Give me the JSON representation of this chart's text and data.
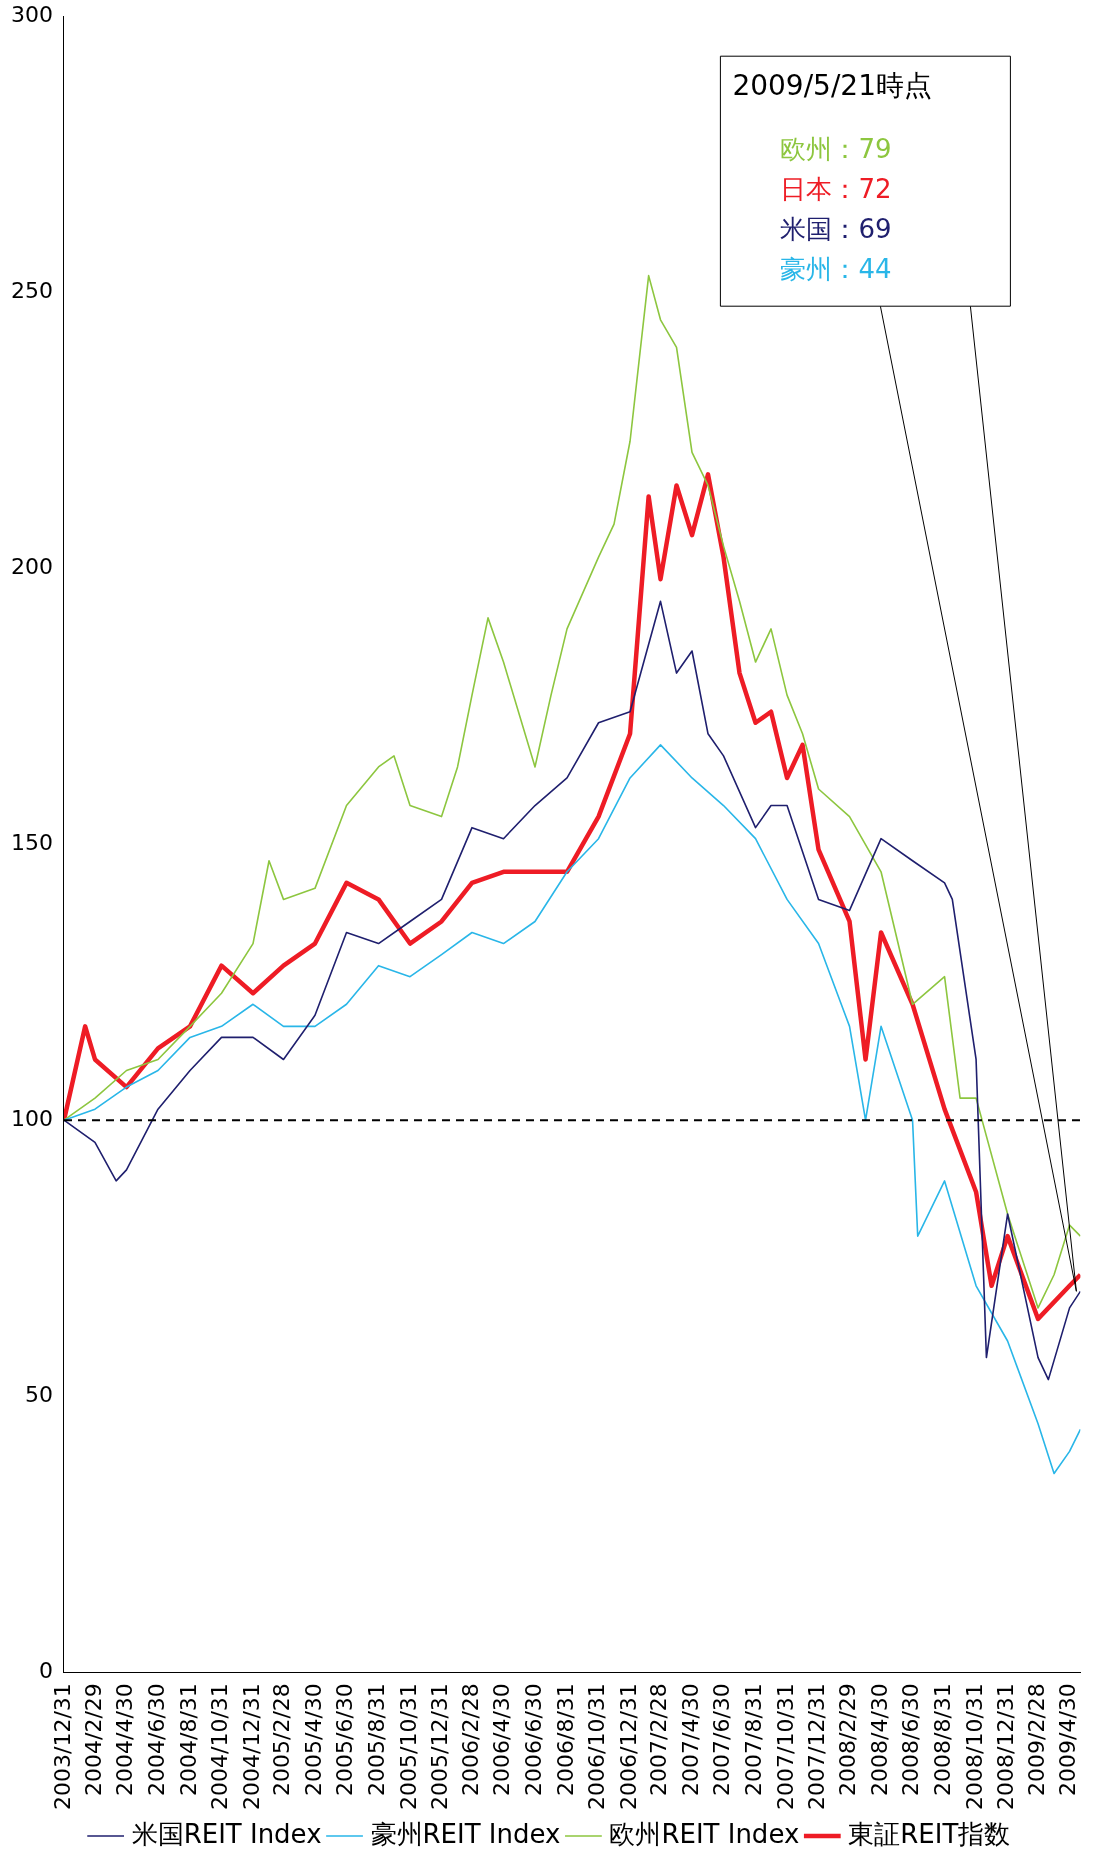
{
  "chart_data": {
    "type": "line",
    "xlim": [
      "2003-12-31",
      "2009-05-21"
    ],
    "xticks": [
      {
        "value": "2003-12-31",
        "label": "2003/12/31"
      },
      {
        "value": "2004-02-29",
        "label": "2004/2/29"
      },
      {
        "value": "2004-04-30",
        "label": "2004/4/30"
      },
      {
        "value": "2004-06-30",
        "label": "2004/6/30"
      },
      {
        "value": "2004-08-31",
        "label": "2004/8/31"
      },
      {
        "value": "2004-10-31",
        "label": "2004/10/31"
      },
      {
        "value": "2004-12-31",
        "label": "2004/12/31"
      },
      {
        "value": "2005-02-28",
        "label": "2005/2/28"
      },
      {
        "value": "2005-04-30",
        "label": "2005/4/30"
      },
      {
        "value": "2005-06-30",
        "label": "2005/6/30"
      },
      {
        "value": "2005-08-31",
        "label": "2005/8/31"
      },
      {
        "value": "2005-10-31",
        "label": "2005/10/31"
      },
      {
        "value": "2005-12-31",
        "label": "2005/12/31"
      },
      {
        "value": "2006-02-28",
        "label": "2006/2/28"
      },
      {
        "value": "2006-04-30",
        "label": "2006/4/30"
      },
      {
        "value": "2006-06-30",
        "label": "2006/6/30"
      },
      {
        "value": "2006-08-31",
        "label": "2006/8/31"
      },
      {
        "value": "2006-10-31",
        "label": "2006/10/31"
      },
      {
        "value": "2006-12-31",
        "label": "2006/12/31"
      },
      {
        "value": "2007-02-28",
        "label": "2007/2/28"
      },
      {
        "value": "2007-04-30",
        "label": "2007/4/30"
      },
      {
        "value": "2007-06-30",
        "label": "2007/6/30"
      },
      {
        "value": "2007-08-31",
        "label": "2007/8/31"
      },
      {
        "value": "2007-10-31",
        "label": "2007/10/31"
      },
      {
        "value": "2007-12-31",
        "label": "2007/12/31"
      },
      {
        "value": "2008-02-29",
        "label": "2008/2/29"
      },
      {
        "value": "2008-04-30",
        "label": "2008/4/30"
      },
      {
        "value": "2008-06-30",
        "label": "2008/6/30"
      },
      {
        "value": "2008-08-31",
        "label": "2008/8/31"
      },
      {
        "value": "2008-10-31",
        "label": "2008/10/31"
      },
      {
        "value": "2008-12-31",
        "label": "2008/12/31"
      },
      {
        "value": "2009-02-28",
        "label": "2009/2/28"
      },
      {
        "value": "2009-04-30",
        "label": "2009/4/30"
      }
    ],
    "ylim": [
      0,
      300
    ],
    "yticks": [
      0,
      50,
      100,
      150,
      200,
      250,
      300
    ],
    "grid": false,
    "legend": "bottom",
    "marker": "none",
    "ref_lines": [
      {
        "axis": "y",
        "value": 100,
        "color": "#000000",
        "line_style": "dashed"
      }
    ],
    "annotations": [
      "2009/5/21時点",
      "欧州：79",
      "日本：72",
      "米国：69",
      "豪州：44"
    ],
    "series": [
      {
        "name": "米国REIT Index",
        "color": "#1f1f6e",
        "x": [
          "2003-12-31",
          "2004-02-29",
          "2004-04-10",
          "2004-04-30",
          "2004-06-30",
          "2004-08-31",
          "2004-10-31",
          "2004-12-31",
          "2005-02-28",
          "2005-04-30",
          "2005-06-30",
          "2005-08-31",
          "2005-10-31",
          "2005-12-31",
          "2006-02-28",
          "2006-04-30",
          "2006-06-30",
          "2006-08-31",
          "2006-10-31",
          "2006-12-31",
          "2007-02-28",
          "2007-03-31",
          "2007-04-30",
          "2007-05-31",
          "2007-06-30",
          "2007-08-31",
          "2007-09-30",
          "2007-10-31",
          "2007-12-31",
          "2008-02-29",
          "2008-04-30",
          "2008-06-30",
          "2008-08-31",
          "2008-09-15",
          "2008-10-31",
          "2008-11-20",
          "2008-12-31",
          "2009-02-28",
          "2009-03-20",
          "2009-04-30",
          "2009-05-21"
        ],
        "values": [
          100,
          96,
          89,
          91,
          102,
          109,
          115,
          115,
          111,
          119,
          134,
          132,
          136,
          140,
          153,
          151,
          157,
          162,
          172,
          174,
          194,
          181,
          185,
          170,
          166,
          153,
          157,
          157,
          140,
          138,
          151,
          147,
          143,
          140,
          111,
          57,
          83,
          57,
          53,
          66,
          69
        ]
      },
      {
        "name": "豪州REIT Index",
        "color": "#29b6e8",
        "x": [
          "2003-12-31",
          "2004-02-29",
          "2004-04-30",
          "2004-06-30",
          "2004-08-31",
          "2004-10-31",
          "2004-12-31",
          "2005-02-28",
          "2005-04-30",
          "2005-06-30",
          "2005-08-31",
          "2005-10-31",
          "2005-12-31",
          "2006-02-28",
          "2006-04-30",
          "2006-06-30",
          "2006-08-31",
          "2006-10-31",
          "2006-12-31",
          "2007-02-28",
          "2007-04-30",
          "2007-06-30",
          "2007-08-31",
          "2007-10-31",
          "2007-12-31",
          "2008-02-29",
          "2008-03-31",
          "2008-04-30",
          "2008-06-30",
          "2008-07-10",
          "2008-08-31",
          "2008-10-31",
          "2008-12-31",
          "2009-02-28",
          "2009-03-31",
          "2009-04-30",
          "2009-05-21"
        ],
        "values": [
          100,
          102,
          106,
          109,
          115,
          117,
          121,
          117,
          117,
          121,
          128,
          126,
          130,
          134,
          132,
          136,
          145,
          151,
          162,
          168,
          162,
          157,
          151,
          140,
          132,
          117,
          100,
          117,
          100,
          79,
          89,
          70,
          60,
          45,
          36,
          40,
          44
        ]
      },
      {
        "name": "欧州REIT Index",
        "color": "#8dc63f",
        "x": [
          "2003-12-31",
          "2004-02-29",
          "2004-04-30",
          "2004-06-30",
          "2004-08-31",
          "2004-10-31",
          "2004-12-31",
          "2005-01-31",
          "2005-02-28",
          "2005-04-30",
          "2005-06-30",
          "2005-08-31",
          "2005-09-30",
          "2005-10-31",
          "2005-12-31",
          "2006-01-31",
          "2006-02-28",
          "2006-03-31",
          "2006-04-30",
          "2006-06-30",
          "2006-07-31",
          "2006-08-31",
          "2006-10-31",
          "2006-11-30",
          "2006-12-31",
          "2007-02-05",
          "2007-02-28",
          "2007-03-31",
          "2007-04-30",
          "2007-05-31",
          "2007-06-30",
          "2007-07-31",
          "2007-08-31",
          "2007-09-30",
          "2007-10-31",
          "2007-11-30",
          "2007-12-31",
          "2008-02-29",
          "2008-04-30",
          "2008-06-30",
          "2008-08-31",
          "2008-09-30",
          "2008-10-31",
          "2008-12-31",
          "2009-02-28",
          "2009-03-31",
          "2009-04-30",
          "2009-05-21"
        ],
        "values": [
          100,
          104,
          109,
          111,
          117,
          123,
          132,
          147,
          140,
          142,
          157,
          164,
          166,
          157,
          155,
          164,
          177,
          191,
          183,
          164,
          177,
          189,
          202,
          208,
          223,
          253,
          245,
          240,
          221,
          215,
          204,
          194,
          183,
          189,
          177,
          170,
          160,
          155,
          145,
          121,
          126,
          104,
          104,
          83,
          66,
          72,
          81,
          79
        ]
      },
      {
        "name": "東証REIT指数",
        "color": "#ee1c25",
        "x": [
          "2003-12-31",
          "2004-02-10",
          "2004-02-29",
          "2004-04-30",
          "2004-06-30",
          "2004-08-31",
          "2004-10-31",
          "2004-12-31",
          "2005-02-28",
          "2005-04-30",
          "2005-06-30",
          "2005-08-31",
          "2005-10-31",
          "2005-12-31",
          "2006-02-28",
          "2006-04-30",
          "2006-06-30",
          "2006-08-31",
          "2006-10-31",
          "2006-12-31",
          "2007-02-05",
          "2007-02-28",
          "2007-03-31",
          "2007-04-30",
          "2007-05-31",
          "2007-06-30",
          "2007-07-31",
          "2007-08-31",
          "2007-09-30",
          "2007-10-31",
          "2007-11-30",
          "2007-12-31",
          "2008-02-29",
          "2008-03-31",
          "2008-04-30",
          "2008-06-30",
          "2008-08-31",
          "2008-10-31",
          "2008-11-30",
          "2008-12-31",
          "2009-02-28",
          "2009-04-30",
          "2009-05-21"
        ],
        "values": [
          100,
          117,
          111,
          106,
          113,
          117,
          128,
          123,
          128,
          132,
          143,
          140,
          132,
          136,
          143,
          145,
          145,
          145,
          155,
          170,
          213,
          198,
          215,
          206,
          217,
          202,
          181,
          172,
          174,
          162,
          168,
          149,
          136,
          111,
          134,
          121,
          102,
          87,
          70,
          79,
          64,
          70,
          72
        ]
      }
    ]
  }
}
